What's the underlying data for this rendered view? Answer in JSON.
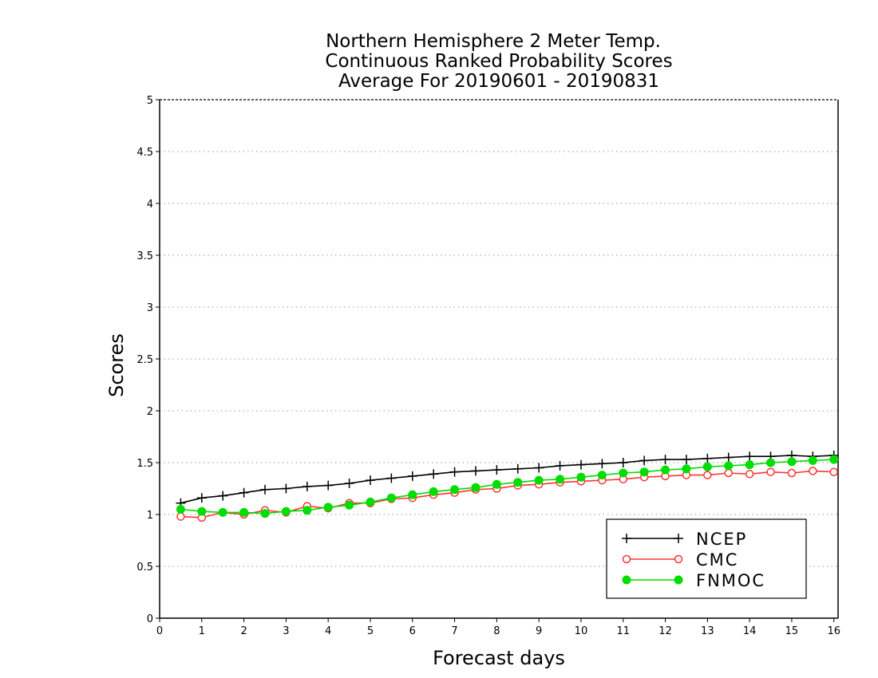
{
  "chart_data": {
    "type": "line",
    "title_lines": [
      "Northern Hemisphere 2 Meter Temp.",
      "Continuous Ranked Probability Scores",
      "Average For 20190601 - 20190831"
    ],
    "xlabel": "Forecast days",
    "ylabel": "Scores",
    "xlim": [
      0,
      16.1
    ],
    "ylim": [
      0,
      5
    ],
    "xticks": [
      0,
      1,
      2,
      3,
      4,
      5,
      6,
      7,
      8,
      9,
      10,
      11,
      12,
      13,
      14,
      15,
      16
    ],
    "xtick_labels": [
      "0",
      "1",
      "2",
      "3",
      "4",
      "5",
      "6",
      "7",
      "8",
      "9",
      "10",
      "11",
      "12",
      "13",
      "14",
      "15",
      "16"
    ],
    "yticks": [
      0,
      0.5,
      1,
      1.5,
      2,
      2.5,
      3,
      3.5,
      4,
      4.5,
      5
    ],
    "ytick_labels": [
      "0",
      "0.5",
      "1",
      "1.5",
      "2",
      "2.5",
      "3",
      "3.5",
      "4",
      "4.5",
      "5"
    ],
    "grid": "horizontal dotted",
    "legend_position": "bottom-right",
    "x": [
      0.5,
      1.0,
      1.5,
      2.0,
      2.5,
      3.0,
      3.5,
      4.0,
      4.5,
      5.0,
      5.5,
      6.0,
      6.5,
      7.0,
      7.5,
      8.0,
      8.5,
      9.0,
      9.5,
      10.0,
      10.5,
      11.0,
      11.5,
      12.0,
      12.5,
      13.0,
      13.5,
      14.0,
      14.5,
      15.0,
      15.5,
      16.0
    ],
    "series": [
      {
        "name": "NCEP",
        "color": "#000000",
        "marker": "plus",
        "values": [
          1.11,
          1.16,
          1.18,
          1.21,
          1.24,
          1.25,
          1.27,
          1.28,
          1.3,
          1.33,
          1.35,
          1.37,
          1.39,
          1.41,
          1.42,
          1.43,
          1.44,
          1.45,
          1.47,
          1.48,
          1.49,
          1.5,
          1.52,
          1.53,
          1.53,
          1.54,
          1.55,
          1.56,
          1.56,
          1.57,
          1.56,
          1.57
        ]
      },
      {
        "name": "CMC",
        "color": "#ff3333",
        "marker": "open-circle",
        "values": [
          0.98,
          0.97,
          1.02,
          1.0,
          1.04,
          1.02,
          1.08,
          1.06,
          1.11,
          1.11,
          1.15,
          1.16,
          1.19,
          1.21,
          1.24,
          1.25,
          1.28,
          1.29,
          1.31,
          1.32,
          1.33,
          1.34,
          1.36,
          1.37,
          1.38,
          1.38,
          1.4,
          1.39,
          1.41,
          1.4,
          1.42,
          1.41
        ]
      },
      {
        "name": "FNMOC",
        "color": "#00dd00",
        "marker": "filled-circle",
        "values": [
          1.05,
          1.03,
          1.02,
          1.02,
          1.01,
          1.03,
          1.04,
          1.07,
          1.09,
          1.12,
          1.16,
          1.19,
          1.22,
          1.24,
          1.26,
          1.29,
          1.31,
          1.33,
          1.34,
          1.36,
          1.38,
          1.4,
          1.41,
          1.43,
          1.44,
          1.46,
          1.47,
          1.48,
          1.5,
          1.51,
          1.52,
          1.53
        ]
      }
    ]
  }
}
